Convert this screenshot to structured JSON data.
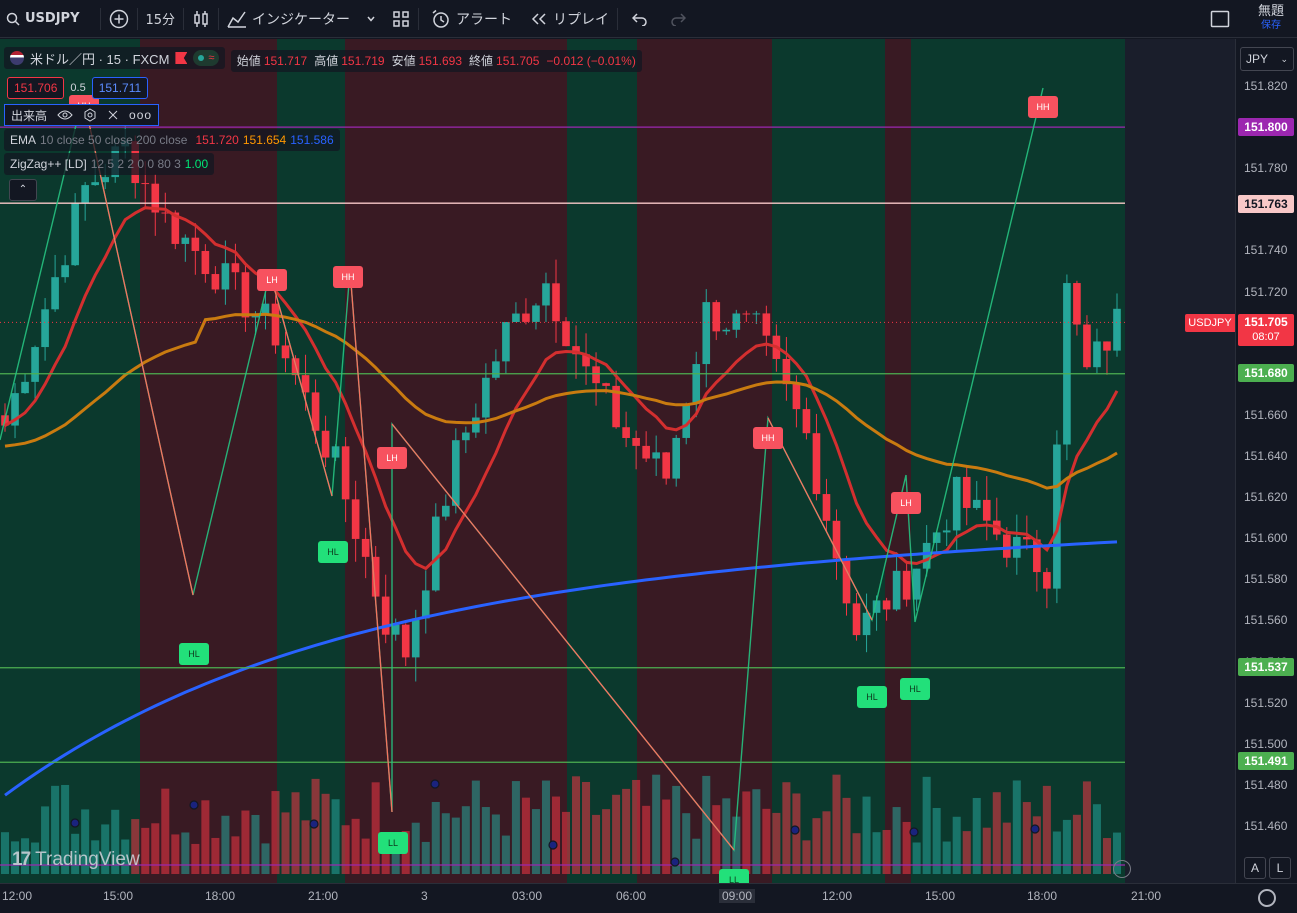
{
  "toolbar": {
    "symbol": "USDJPY",
    "add_icon": "plus-circle-icon",
    "interval": "15分",
    "chart_type_icon": "candles-icon",
    "indicators_label": "インジケーター",
    "templates_icon": "grid-icon",
    "alert_label": "アラート",
    "replay_label": "リプレイ",
    "undo_icon": "undo-icon",
    "redo_icon": "redo-icon",
    "layout_title": "無題",
    "layout_sub": "保存"
  },
  "legend": {
    "symbol_title": "米ドル／円 · 15 · FXCM",
    "open_label": "始値",
    "open": "151.717",
    "high_label": "高値",
    "high": "151.719",
    "low_label": "安値",
    "low": "151.693",
    "close_label": "終値",
    "close": "151.705",
    "change": "−0.012 (−0.01%)",
    "bid": "151.706",
    "spread": "0.5",
    "ask": "151.711",
    "volume_label": "出来高",
    "ema_label": "EMA",
    "ema_params": "10 close 50 close 200 close",
    "ema10": "151.720",
    "ema50": "151.654",
    "ema200": "151.586",
    "zigzag_label": "ZigZag++ [LD]",
    "zigzag_params": "12 5 2 2 0 0 80 3",
    "zigzag_value": "1.00"
  },
  "price_axis": {
    "currency": "JPY",
    "ticks": [
      "151.820",
      "151.800",
      "151.780",
      "151.760",
      "151.740",
      "151.720",
      "151.700",
      "151.680",
      "151.660",
      "151.640",
      "151.620",
      "151.600",
      "151.580",
      "151.560",
      "151.540",
      "151.520",
      "151.500",
      "151.480",
      "151.460"
    ],
    "tag_151800": "151.800",
    "tag_151763": "151.763",
    "tag_symbol": "USDJPY",
    "tag_last": "151.705",
    "tag_countdown": "08:07",
    "tag_151680": "151.680",
    "tag_151537": "151.537",
    "tag_151491": "151.491"
  },
  "time_axis": {
    "ticks": [
      "12:00",
      "15:00",
      "18:00",
      "21:00",
      "3",
      "03:00",
      "06:00",
      "09:00",
      "12:00",
      "15:00",
      "18:00",
      "21:00"
    ]
  },
  "pivots": [
    "HH",
    "LH",
    "HH",
    "LH",
    "HL",
    "HL",
    "HH",
    "LH",
    "HL",
    "HL",
    "HH",
    "LL",
    "LL"
  ],
  "watermark": "TradingView",
  "auto_buttons": {
    "a": "A",
    "l": "L"
  },
  "colors": {
    "up": "#26a69a",
    "down": "#f23645",
    "ema10": "#d32f2f",
    "ema50": "#c97b10",
    "ema200": "#2962ff",
    "bg_green": "#0b3b2e",
    "bg_red": "#3b1a24"
  },
  "chart_data": {
    "type": "candlestick",
    "title": "米ドル／円 · 15 · FXCM",
    "price_range": [
      151.45,
      151.83
    ],
    "horizontal_lines": [
      151.8,
      151.763,
      151.68,
      151.537,
      151.491
    ],
    "series": [
      {
        "name": "EMA 10",
        "last": 151.72
      },
      {
        "name": "EMA 50",
        "last": 151.654
      },
      {
        "name": "EMA 200",
        "last": 151.586
      }
    ],
    "ohlc_last": {
      "open": 151.717,
      "high": 151.719,
      "low": 151.693,
      "close": 151.705
    }
  }
}
